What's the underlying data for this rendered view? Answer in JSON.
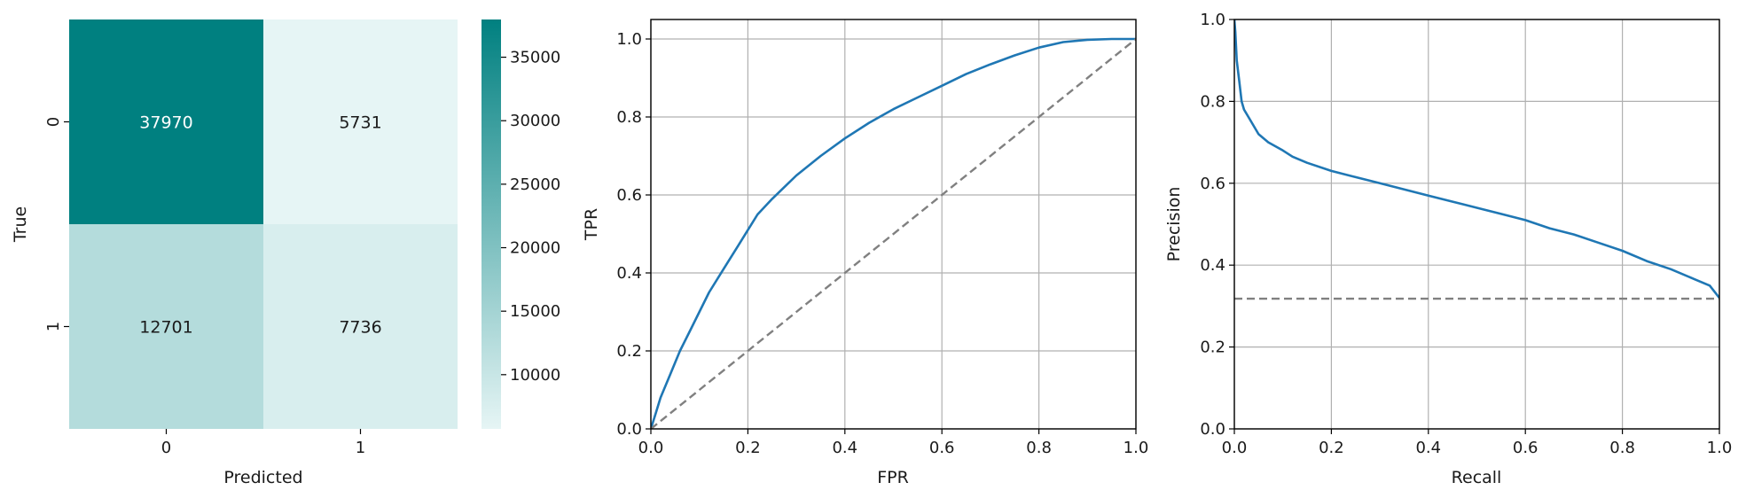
{
  "chart_data": [
    {
      "type": "heatmap",
      "xlabel": "Predicted",
      "ylabel": "True",
      "x_categories": [
        "0",
        "1"
      ],
      "y_categories": [
        "0",
        "1"
      ],
      "matrix": [
        [
          37970,
          5731
        ],
        [
          12701,
          7736
        ]
      ],
      "cell_labels": [
        [
          "37970",
          "5731"
        ],
        [
          "12701",
          "7736"
        ]
      ],
      "colorbar": {
        "min": 5731,
        "max": 37970,
        "ticks": [
          10000,
          15000,
          20000,
          25000,
          30000,
          35000
        ],
        "tick_labels": [
          "10000",
          "15000",
          "20000",
          "25000",
          "30000",
          "35000"
        ],
        "color_low": "#e6f5f5",
        "color_high": "#008080"
      }
    },
    {
      "type": "line",
      "xlabel": "FPR",
      "ylabel": "TPR",
      "xlim": [
        0,
        1
      ],
      "ylim": [
        0,
        1.05
      ],
      "xticks": [
        "0.0",
        "0.2",
        "0.4",
        "0.6",
        "0.8",
        "1.0"
      ],
      "yticks": [
        "0.0",
        "0.2",
        "0.4",
        "0.6",
        "0.8",
        "1.0"
      ],
      "grid": true,
      "series": [
        {
          "color": "#1f77b4",
          "x": [
            0,
            0.01,
            0.02,
            0.04,
            0.06,
            0.08,
            0.1,
            0.12,
            0.15,
            0.18,
            0.2,
            0.22,
            0.25,
            0.3,
            0.35,
            0.4,
            0.45,
            0.5,
            0.55,
            0.6,
            0.65,
            0.7,
            0.75,
            0.8,
            0.85,
            0.9,
            0.95,
            1.0
          ],
          "y": [
            0,
            0.04,
            0.08,
            0.14,
            0.2,
            0.25,
            0.3,
            0.35,
            0.41,
            0.47,
            0.51,
            0.55,
            0.59,
            0.65,
            0.7,
            0.745,
            0.785,
            0.82,
            0.85,
            0.88,
            0.91,
            0.935,
            0.958,
            0.978,
            0.992,
            0.998,
            1.0,
            1.0
          ]
        },
        {
          "color": "#808080",
          "dashed": true,
          "x": [
            0,
            1
          ],
          "y": [
            0,
            1
          ]
        }
      ]
    },
    {
      "type": "line",
      "xlabel": "Recall",
      "ylabel": "Precision",
      "xlim": [
        0,
        1
      ],
      "ylim": [
        0,
        1
      ],
      "xticks": [
        "0.0",
        "0.2",
        "0.4",
        "0.6",
        "0.8",
        "1.0"
      ],
      "yticks": [
        "0.0",
        "0.2",
        "0.4",
        "0.6",
        "0.8",
        "1.0"
      ],
      "grid": true,
      "series": [
        {
          "color": "#1f77b4",
          "x": [
            0,
            0.002,
            0.005,
            0.01,
            0.015,
            0.02,
            0.03,
            0.05,
            0.07,
            0.1,
            0.12,
            0.15,
            0.2,
            0.25,
            0.3,
            0.35,
            0.4,
            0.45,
            0.5,
            0.55,
            0.6,
            0.65,
            0.7,
            0.75,
            0.8,
            0.85,
            0.9,
            0.95,
            0.98,
            1.0
          ],
          "y": [
            1.0,
            0.97,
            0.9,
            0.85,
            0.8,
            0.78,
            0.76,
            0.72,
            0.7,
            0.68,
            0.665,
            0.65,
            0.63,
            0.615,
            0.6,
            0.585,
            0.57,
            0.555,
            0.54,
            0.525,
            0.51,
            0.49,
            0.475,
            0.455,
            0.435,
            0.41,
            0.39,
            0.365,
            0.35,
            0.32
          ]
        },
        {
          "color": "#808080",
          "dashed": true,
          "x": [
            0,
            1
          ],
          "y": [
            0.318,
            0.318
          ]
        }
      ]
    }
  ]
}
